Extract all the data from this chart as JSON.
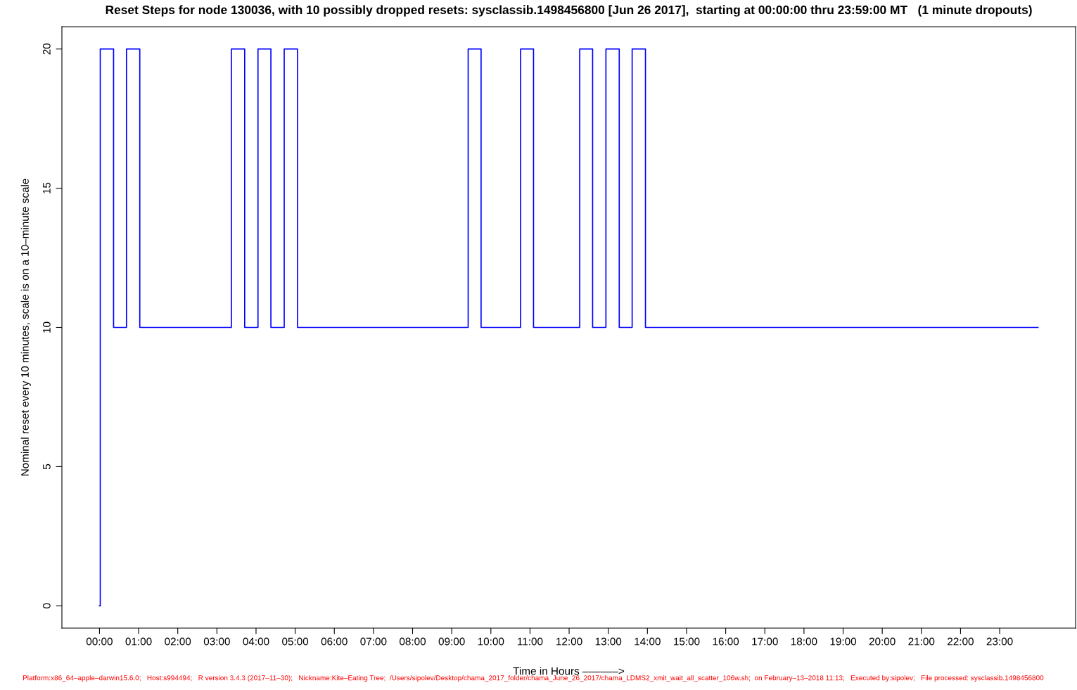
{
  "chart_data": {
    "type": "step",
    "title": "Reset Steps for node 130036, with 10 possibly dropped resets: sysclassib.1498456800 [Jun 26 2017],  starting at 00:00:00 thru 23:59:00 MT   (1 minute dropouts)",
    "xlabel": "Time in Hours ––––––>",
    "ylabel": "Nominal reset every 10 minutes, scale is on a 10–minute scale",
    "annotations": [
      "Platform:x86_64–apple–darwin15.6.0;   Host:s994494;   R version 3.4.3 (2017–11–30);   Nickname:Kite–Eating Tree;  /Users/sipolev/Desktop/chama_2017_folder/chama_June_26_2017/chama_LDMS2_xmit_wait_all_scatter_106w.sh;  on February–13–2018 11:13;   Executed by:sipolev;   File processed: sysclassib.1498456800"
    ],
    "series": [
      {
        "color": "#0000ff",
        "x": [
          0,
          0.02,
          0.36,
          0.69,
          1.03,
          3.37,
          3.71,
          4.05,
          4.38,
          4.72,
          5.06,
          9.42,
          9.75,
          10.76,
          11.09,
          12.27,
          12.6,
          12.94,
          13.28,
          13.61,
          13.95,
          23.98
        ],
        "values": [
          0,
          20,
          10,
          20,
          10,
          20,
          10,
          20,
          10,
          20,
          10,
          20,
          10,
          20,
          10,
          20,
          10,
          20,
          10,
          20,
          10,
          10
        ]
      }
    ],
    "xlim": [
      -0.96,
      24.94
    ],
    "ylim": [
      -0.8,
      20.8
    ],
    "xticks": [
      {
        "value": 0,
        "label": "00:00"
      },
      {
        "value": 1,
        "label": "01:00"
      },
      {
        "value": 2,
        "label": "02:00"
      },
      {
        "value": 3,
        "label": "03:00"
      },
      {
        "value": 4,
        "label": "04:00"
      },
      {
        "value": 5,
        "label": "05:00"
      },
      {
        "value": 6,
        "label": "06:00"
      },
      {
        "value": 7,
        "label": "07:00"
      },
      {
        "value": 8,
        "label": "08:00"
      },
      {
        "value": 9,
        "label": "09:00"
      },
      {
        "value": 10,
        "label": "10:00"
      },
      {
        "value": 11,
        "label": "11:00"
      },
      {
        "value": 12,
        "label": "12:00"
      },
      {
        "value": 13,
        "label": "13:00"
      },
      {
        "value": 14,
        "label": "14:00"
      },
      {
        "value": 15,
        "label": "15:00"
      },
      {
        "value": 16,
        "label": "16:00"
      },
      {
        "value": 17,
        "label": "17:00"
      },
      {
        "value": 18,
        "label": "18:00"
      },
      {
        "value": 19,
        "label": "19:00"
      },
      {
        "value": 20,
        "label": "20:00"
      },
      {
        "value": 21,
        "label": "21:00"
      },
      {
        "value": 22,
        "label": "22:00"
      },
      {
        "value": 23,
        "label": "23:00"
      }
    ],
    "yticks": [
      0,
      5,
      10,
      15,
      20
    ],
    "grid": false,
    "legend": false
  }
}
